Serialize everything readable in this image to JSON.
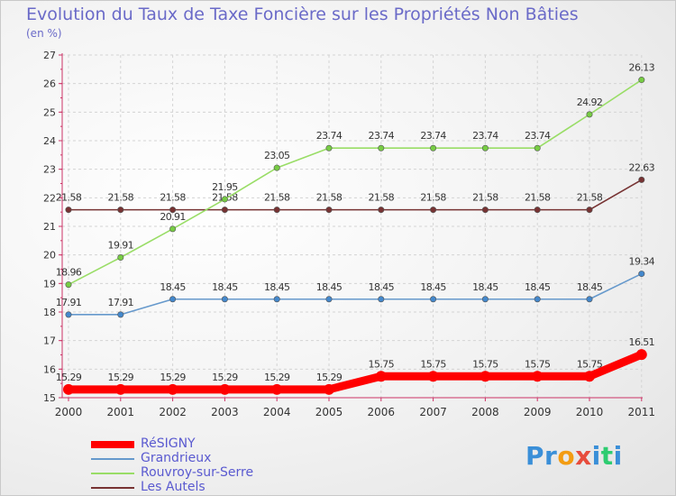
{
  "header": {
    "title": "Evolution du Taux de Taxe Foncière sur les Propriétés Non Bâties",
    "unit": "(en %)"
  },
  "legend": [
    {
      "label": "RéSIGNY",
      "color": "#ff0000"
    },
    {
      "label": "Grandrieux",
      "color": "#6699cc"
    },
    {
      "label": "Rouvroy-sur-Serre",
      "color": "#99dd66"
    },
    {
      "label": "Les Autels",
      "color": "#773333"
    }
  ],
  "logo": {
    "letters": [
      "P",
      "r",
      "o",
      "x",
      "i",
      "t",
      "i"
    ],
    "colors": [
      "#3a8fd8",
      "#3a8fd8",
      "#f39c12",
      "#e74c3c",
      "#3a8fd8",
      "#2ecc71",
      "#3a8fd8"
    ]
  },
  "chart_data": {
    "type": "line",
    "title": "Evolution du Taux de Taxe Foncière sur les Propriétés Non Bâties",
    "ylabel": "(en %)",
    "xlabel": "",
    "x": [
      "2000",
      "2001",
      "2002",
      "2003",
      "2004",
      "2005",
      "2006",
      "2007",
      "2008",
      "2009",
      "2010",
      "2011"
    ],
    "ylim": [
      15,
      27
    ],
    "yticks": [
      "15",
      "16",
      "17",
      "18",
      "19",
      "20",
      "21",
      "22",
      "23",
      "24",
      "25",
      "26",
      "27"
    ],
    "grid": true,
    "legend_position": "bottom-left",
    "series": [
      {
        "name": "Les Autels",
        "color": "#773333",
        "marker": "#773333",
        "values": [
          21.58,
          21.58,
          21.58,
          21.58,
          21.58,
          21.58,
          21.58,
          21.58,
          21.58,
          21.58,
          21.58,
          22.63
        ],
        "labels": [
          "21.58",
          "21.58",
          "21.58",
          "21.58",
          "21.58",
          "21.58",
          "21.58",
          "21.58",
          "21.58",
          "21.58",
          "21.58",
          "22.63"
        ]
      },
      {
        "name": "Grandrieux",
        "color": "#6699cc",
        "marker": "#4488cc",
        "values": [
          17.91,
          17.91,
          18.45,
          18.45,
          18.45,
          18.45,
          18.45,
          18.45,
          18.45,
          18.45,
          18.45,
          19.34
        ],
        "labels": [
          "17.91",
          "17.91",
          "18.45",
          "18.45",
          "18.45",
          "18.45",
          "18.45",
          "18.45",
          "18.45",
          "18.45",
          "18.45",
          "19.34"
        ]
      },
      {
        "name": "Rouvroy-sur-Serre",
        "color": "#99dd66",
        "marker": "#77cc44",
        "values": [
          18.96,
          19.91,
          20.91,
          21.95,
          23.05,
          23.74,
          23.74,
          23.74,
          23.74,
          23.74,
          24.92,
          26.13
        ],
        "labels": [
          "18.96",
          "19.91",
          "20.91",
          "21.95",
          "23.05",
          "23.74",
          "23.74",
          "23.74",
          "23.74",
          "23.74",
          "24.92",
          "26.13"
        ]
      },
      {
        "name": "RéSIGNY",
        "color": "#ff0000",
        "marker": "#ff0000",
        "values": [
          15.29,
          15.29,
          15.29,
          15.29,
          15.29,
          15.29,
          15.75,
          15.75,
          15.75,
          15.75,
          15.75,
          16.51
        ],
        "labels": [
          "15.29",
          "15.29",
          "15.29",
          "15.29",
          "15.29",
          "15.29",
          "15.75",
          "15.75",
          "15.75",
          "15.75",
          "15.75",
          "16.51"
        ]
      }
    ]
  }
}
